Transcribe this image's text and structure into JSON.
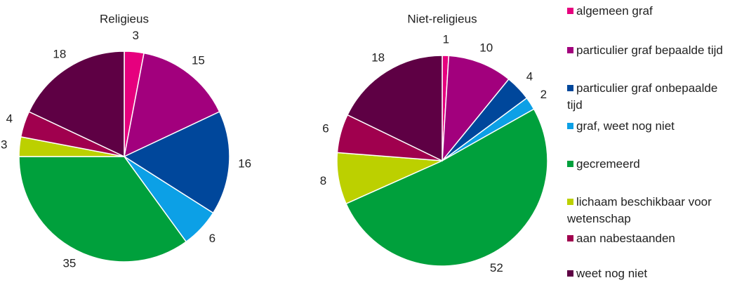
{
  "chart_data": [
    {
      "type": "pie",
      "title": "Religieus",
      "values": [
        3,
        15,
        16,
        6,
        35,
        3,
        4,
        18
      ]
    },
    {
      "type": "pie",
      "title": "Niet-religieus",
      "values": [
        1,
        10,
        4,
        2,
        52,
        8,
        6,
        18
      ]
    }
  ],
  "legend": {
    "items": [
      "algemeen graf",
      "particulier graf bepaalde tijd",
      "particulier graf onbepaalde tijd",
      "graf, weet nog niet",
      "gecremeerd",
      "lichaam beschikbaar voor wetenschap",
      "aan nabestaanden",
      "weet nog niet"
    ],
    "colors": [
      "#e6007e",
      "#a2007d",
      "#00479b",
      "#0ca0e6",
      "#00a03c",
      "#bcd000",
      "#a0004e",
      "#5e0044"
    ]
  }
}
